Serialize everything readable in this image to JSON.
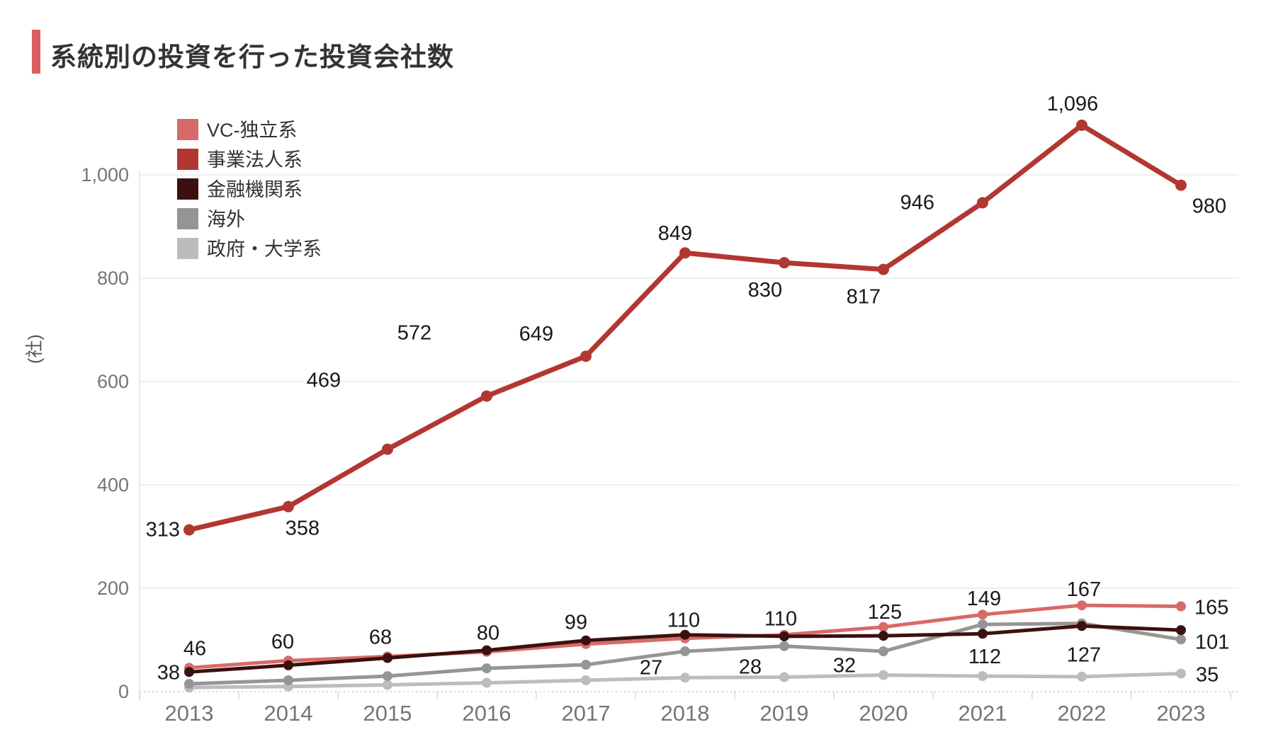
{
  "title": "系統別の投資を行った投資会社数",
  "accent_color": "#d8605e",
  "chart_data": {
    "type": "line",
    "title": "系統別の投資を行った投資会社数",
    "ylabel": "(社)",
    "xlabel": "",
    "ylim": [
      0,
      1100
    ],
    "yticks": [
      0,
      200,
      400,
      600,
      800,
      1000
    ],
    "ytick_labels": [
      "0",
      "200",
      "400",
      "600",
      "800",
      "1,000"
    ],
    "grid": "horizontal",
    "legend_position": "top-left-inside",
    "categories": [
      "2013",
      "2014",
      "2015",
      "2016",
      "2017",
      "2018",
      "2019",
      "2020",
      "2021",
      "2022",
      "2023"
    ],
    "series": [
      {
        "name": "政府・大学系",
        "color": "#bcbcbc",
        "values": [
          8,
          10,
          13,
          17,
          22,
          27,
          28,
          32,
          30,
          29,
          35
        ],
        "point_labels": [
          {
            "index": 5,
            "text": "27",
            "dx": -48,
            "dy": -5,
            "anchor": "middle"
          },
          {
            "index": 6,
            "text": "28",
            "dx": -48,
            "dy": -5,
            "anchor": "middle"
          },
          {
            "index": 7,
            "text": "32",
            "dx": -55,
            "dy": -4,
            "anchor": "middle"
          },
          {
            "index": 10,
            "text": "35",
            "dx": 21,
            "dy": 11,
            "anchor": "start"
          }
        ]
      },
      {
        "name": "海外",
        "color": "#959595",
        "values": [
          15,
          22,
          30,
          45,
          52,
          78,
          88,
          78,
          130,
          132,
          101
        ],
        "point_labels": [
          {
            "index": 10,
            "text": "101",
            "dx": 20,
            "dy": 13,
            "anchor": "start"
          }
        ]
      },
      {
        "name": "VC-独立系",
        "color": "#d76a68",
        "values": [
          46,
          60,
          68,
          77,
          92,
          103,
          110,
          125,
          149,
          167,
          165
        ],
        "point_labels": [
          {
            "index": 0,
            "text": "46",
            "dx": 8,
            "dy": -18,
            "anchor": "middle"
          },
          {
            "index": 1,
            "text": "60",
            "dx": -8,
            "dy": -17,
            "anchor": "middle"
          },
          {
            "index": 2,
            "text": "68",
            "dx": -10,
            "dy": -18,
            "anchor": "middle"
          },
          {
            "index": 6,
            "text": "110",
            "dx": -5,
            "dy": -13,
            "anchor": "middle"
          },
          {
            "index": 7,
            "text": "125",
            "dx": 2,
            "dy": -12,
            "anchor": "middle"
          },
          {
            "index": 8,
            "text": "149",
            "dx": 2,
            "dy": -13,
            "anchor": "middle"
          },
          {
            "index": 9,
            "text": "167",
            "dx": 3,
            "dy": -13,
            "anchor": "middle"
          },
          {
            "index": 10,
            "text": "165",
            "dx": 19,
            "dy": 11,
            "anchor": "start"
          }
        ]
      },
      {
        "name": "金融機関系",
        "color": "#3a110e",
        "values": [
          38,
          51,
          65,
          80,
          99,
          110,
          107,
          108,
          112,
          127,
          119
        ],
        "point_labels": [
          {
            "index": 0,
            "text": "38",
            "dx": -13,
            "dy": 10,
            "anchor": "end"
          },
          {
            "index": 3,
            "text": "80",
            "dx": 2,
            "dy": -15,
            "anchor": "middle"
          },
          {
            "index": 4,
            "text": "99",
            "dx": -14,
            "dy": -16,
            "anchor": "middle"
          },
          {
            "index": 5,
            "text": "110",
            "dx": -2,
            "dy": -11,
            "anchor": "middle"
          },
          {
            "index": 8,
            "text": "112",
            "dx": 3,
            "dy": 42,
            "anchor": "middle"
          },
          {
            "index": 9,
            "text": "127",
            "dx": 3,
            "dy": 50,
            "anchor": "middle"
          }
        ]
      },
      {
        "name": "事業法人系",
        "color": "#b23731",
        "values": [
          313,
          358,
          469,
          572,
          649,
          849,
          830,
          817,
          946,
          1096,
          980
        ],
        "point_labels": [
          {
            "index": 0,
            "text": "313",
            "dx": -13,
            "dy": 9,
            "anchor": "end"
          },
          {
            "index": 1,
            "text": "358",
            "dx": 20,
            "dy": 40,
            "anchor": "middle"
          },
          {
            "index": 2,
            "text": "469",
            "dx": -90,
            "dy": -88,
            "anchor": "middle"
          },
          {
            "index": 3,
            "text": "572",
            "dx": -102,
            "dy": -80,
            "anchor": "middle"
          },
          {
            "index": 4,
            "text": "649",
            "dx": -70,
            "dy": -22,
            "anchor": "middle"
          },
          {
            "index": 5,
            "text": "849",
            "dx": -14,
            "dy": -18,
            "anchor": "middle"
          },
          {
            "index": 6,
            "text": "830",
            "dx": -27,
            "dy": 48,
            "anchor": "middle"
          },
          {
            "index": 7,
            "text": "817",
            "dx": -28,
            "dy": 48,
            "anchor": "middle"
          },
          {
            "index": 8,
            "text": "946",
            "dx": -68,
            "dy": 9,
            "anchor": "end"
          },
          {
            "index": 9,
            "text": "1,096",
            "dx": -13,
            "dy": -21,
            "anchor": "middle"
          },
          {
            "index": 10,
            "text": "980",
            "dx": 40,
            "dy": 39,
            "anchor": "middle"
          }
        ]
      }
    ],
    "legend_order": [
      "VC-独立系",
      "事業法人系",
      "金融機関系",
      "海外",
      "政府・大学系"
    ]
  }
}
